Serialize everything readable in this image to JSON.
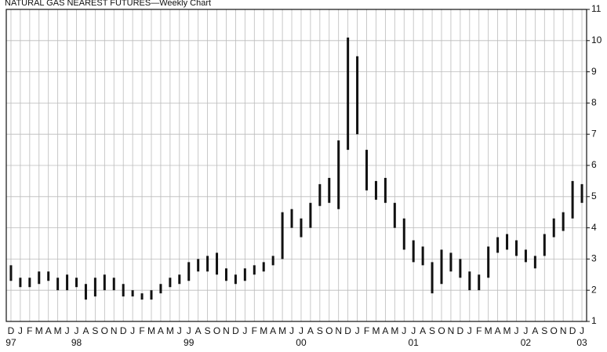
{
  "chart_data": {
    "type": "range",
    "title": "NATURAL GAS NEAREST FUTURES—Weekly Chart",
    "categories": [
      "D",
      "J",
      "F",
      "M",
      "A",
      "M",
      "J",
      "J",
      "A",
      "S",
      "O",
      "N",
      "D",
      "J",
      "F",
      "M",
      "A",
      "M",
      "J",
      "J",
      "A",
      "S",
      "O",
      "N",
      "D",
      "J",
      "F",
      "M",
      "A",
      "M",
      "J",
      "J",
      "A",
      "S",
      "O",
      "N",
      "D",
      "J",
      "F",
      "M",
      "A",
      "M",
      "J",
      "J",
      "A",
      "S",
      "O",
      "N",
      "D",
      "J",
      "F",
      "M",
      "A",
      "M",
      "J",
      "J",
      "A",
      "S",
      "O",
      "N",
      "D",
      "J"
    ],
    "year_labels": [
      "97",
      null,
      null,
      null,
      null,
      null,
      null,
      "98",
      null,
      null,
      null,
      null,
      null,
      null,
      null,
      null,
      null,
      null,
      null,
      "99",
      null,
      null,
      null,
      null,
      null,
      null,
      null,
      null,
      null,
      null,
      null,
      "00",
      null,
      null,
      null,
      null,
      null,
      null,
      null,
      null,
      null,
      null,
      null,
      "01",
      null,
      null,
      null,
      null,
      null,
      null,
      null,
      null,
      null,
      null,
      null,
      "02",
      null,
      null,
      null,
      null,
      null,
      "03"
    ],
    "high": [
      2.8,
      2.4,
      2.4,
      2.6,
      2.6,
      2.4,
      2.5,
      2.4,
      2.2,
      2.4,
      2.5,
      2.4,
      2.2,
      2.0,
      1.9,
      2.0,
      2.2,
      2.4,
      2.5,
      2.9,
      3.0,
      3.1,
      3.2,
      2.7,
      2.5,
      2.7,
      2.8,
      2.9,
      3.1,
      4.5,
      4.6,
      4.3,
      4.8,
      5.4,
      5.6,
      6.8,
      10.1,
      9.5,
      6.5,
      5.5,
      5.6,
      4.8,
      4.3,
      3.6,
      3.4,
      2.9,
      3.3,
      3.2,
      3.0,
      2.6,
      2.5,
      3.4,
      3.7,
      3.8,
      3.6,
      3.3,
      3.1,
      3.8,
      4.3,
      4.5,
      5.5,
      5.4
    ],
    "low": [
      2.3,
      2.1,
      2.1,
      2.2,
      2.3,
      2.0,
      2.0,
      2.1,
      1.7,
      1.8,
      2.0,
      2.0,
      1.8,
      1.8,
      1.7,
      1.7,
      1.9,
      2.1,
      2.2,
      2.3,
      2.6,
      2.6,
      2.5,
      2.3,
      2.2,
      2.3,
      2.5,
      2.6,
      2.8,
      3.0,
      4.0,
      3.7,
      4.0,
      4.7,
      4.8,
      4.6,
      6.5,
      7.0,
      5.2,
      4.9,
      4.8,
      4.0,
      3.3,
      2.9,
      2.8,
      1.9,
      2.2,
      2.6,
      2.4,
      2.0,
      2.0,
      2.4,
      3.2,
      3.3,
      3.1,
      2.9,
      2.7,
      3.1,
      3.7,
      3.9,
      4.3,
      4.8
    ],
    "color": "#111111",
    "ylim": [
      1,
      11
    ],
    "yticks": [
      1,
      2,
      3,
      4,
      5,
      6,
      7,
      8,
      9,
      10,
      11
    ],
    "grid": true
  }
}
